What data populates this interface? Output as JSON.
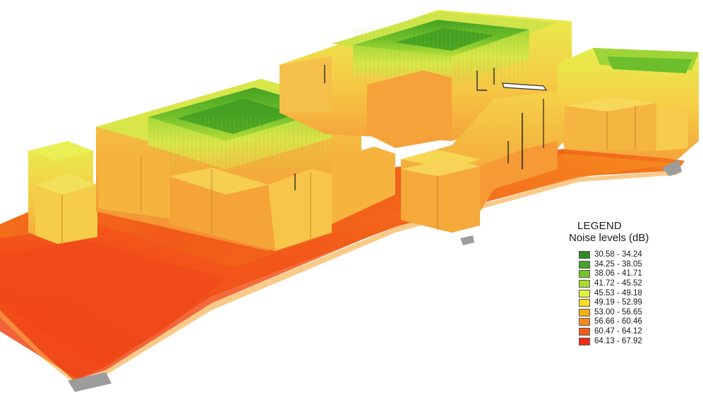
{
  "legend": {
    "title": "LEGEND",
    "subtitle": "Noise levels (dB)",
    "items": [
      {
        "label": "30.58 - 34.24",
        "color": "#2e8b22"
      },
      {
        "label": "34.25 - 38.05",
        "color": "#49a424"
      },
      {
        "label": "38.06 - 41.71",
        "color": "#74c424"
      },
      {
        "label": "41.72 - 45.52",
        "color": "#a6dd2e"
      },
      {
        "label": "45.53 - 49.18",
        "color": "#e2f23c"
      },
      {
        "label": "49.19 - 52.99",
        "color": "#f9df20"
      },
      {
        "label": "53.00 - 56.65",
        "color": "#f7ad17"
      },
      {
        "label": "56.66 - 60.46",
        "color": "#f58a18"
      },
      {
        "label": "60.47 - 64.12",
        "color": "#f35a17"
      },
      {
        "label": "64.13 - 67.92",
        "color": "#ee2a18"
      }
    ]
  },
  "palette": {
    "ground_hot": "#f14a18",
    "ground_warm": "#f6821c",
    "ground_mid": "#f5a025",
    "base_grey": "#9c9c9c",
    "facade_orange": "#f4a437",
    "facade_yellow": "#f6d350",
    "roof_green": "#5cb52a"
  }
}
